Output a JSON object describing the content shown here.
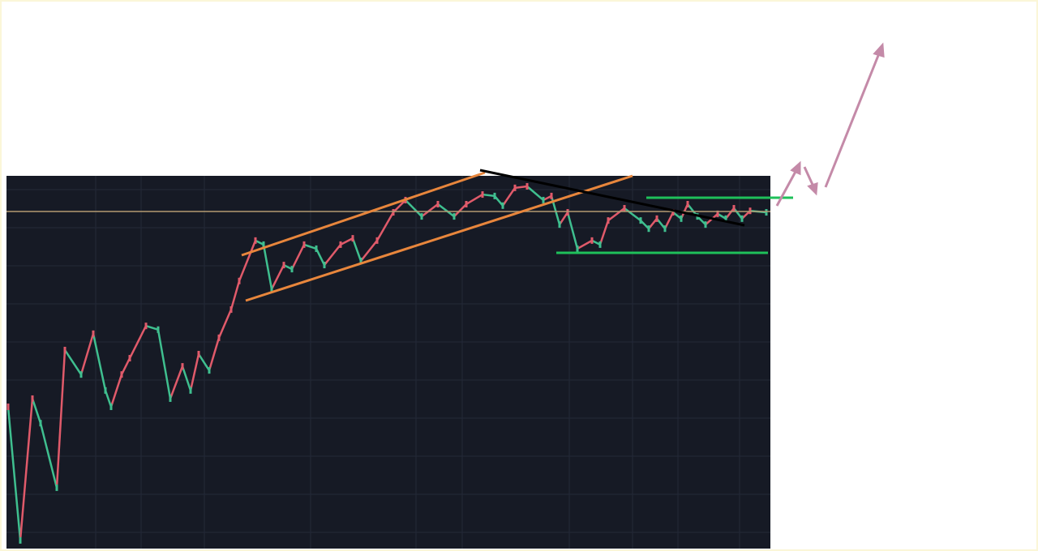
{
  "chart_data": {
    "type": "candlestick",
    "x": [
      2,
      17,
      32,
      42,
      62,
      72,
      92,
      107,
      122,
      129,
      142,
      152,
      172,
      187,
      202,
      217,
      227,
      237,
      250,
      262,
      277,
      287,
      307,
      317,
      327,
      342,
      352,
      367,
      382,
      392,
      412,
      427,
      437,
      457,
      477,
      492,
      512,
      532,
      552,
      567,
      587,
      602,
      612,
      627,
      642,
      662,
      672,
      682,
      692,
      704,
      722,
      732,
      742,
      762,
      782,
      792,
      802,
      812,
      822,
      832,
      840,
      852,
      862,
      877,
      887,
      897,
      907,
      917,
      937
    ],
    "values": [
      38.2,
      2.2,
      40.4,
      33.8,
      16.4,
      53.5,
      46.9,
      57.9,
      42.6,
      38.2,
      46.9,
      51.3,
      60.0,
      59.0,
      40.4,
      49.1,
      42.6,
      52.4,
      48.0,
      56.8,
      64.4,
      72.1,
      83.0,
      81.9,
      69.9,
      76.4,
      75.3,
      81.9,
      80.8,
      76.4,
      81.9,
      83.6,
      77.5,
      83.0,
      90.6,
      93.9,
      89.5,
      92.8,
      89.5,
      92.8,
      95.4,
      95.0,
      92.4,
      97.2,
      97.6,
      93.9,
      95.0,
      87.3,
      90.6,
      80.8,
      83.0,
      81.9,
      88.4,
      91.7,
      88.4,
      86.2,
      88.9,
      86.2,
      90.6,
      88.9,
      92.8,
      89.5,
      87.3,
      90.2,
      88.9,
      91.7,
      88.9,
      91.0,
      90.6
    ],
    "xlim": [
      0,
      942
    ],
    "ylim": [
      0,
      100
    ],
    "up_color": "#e05a6a",
    "down_color": "#3fbf8f"
  }
}
